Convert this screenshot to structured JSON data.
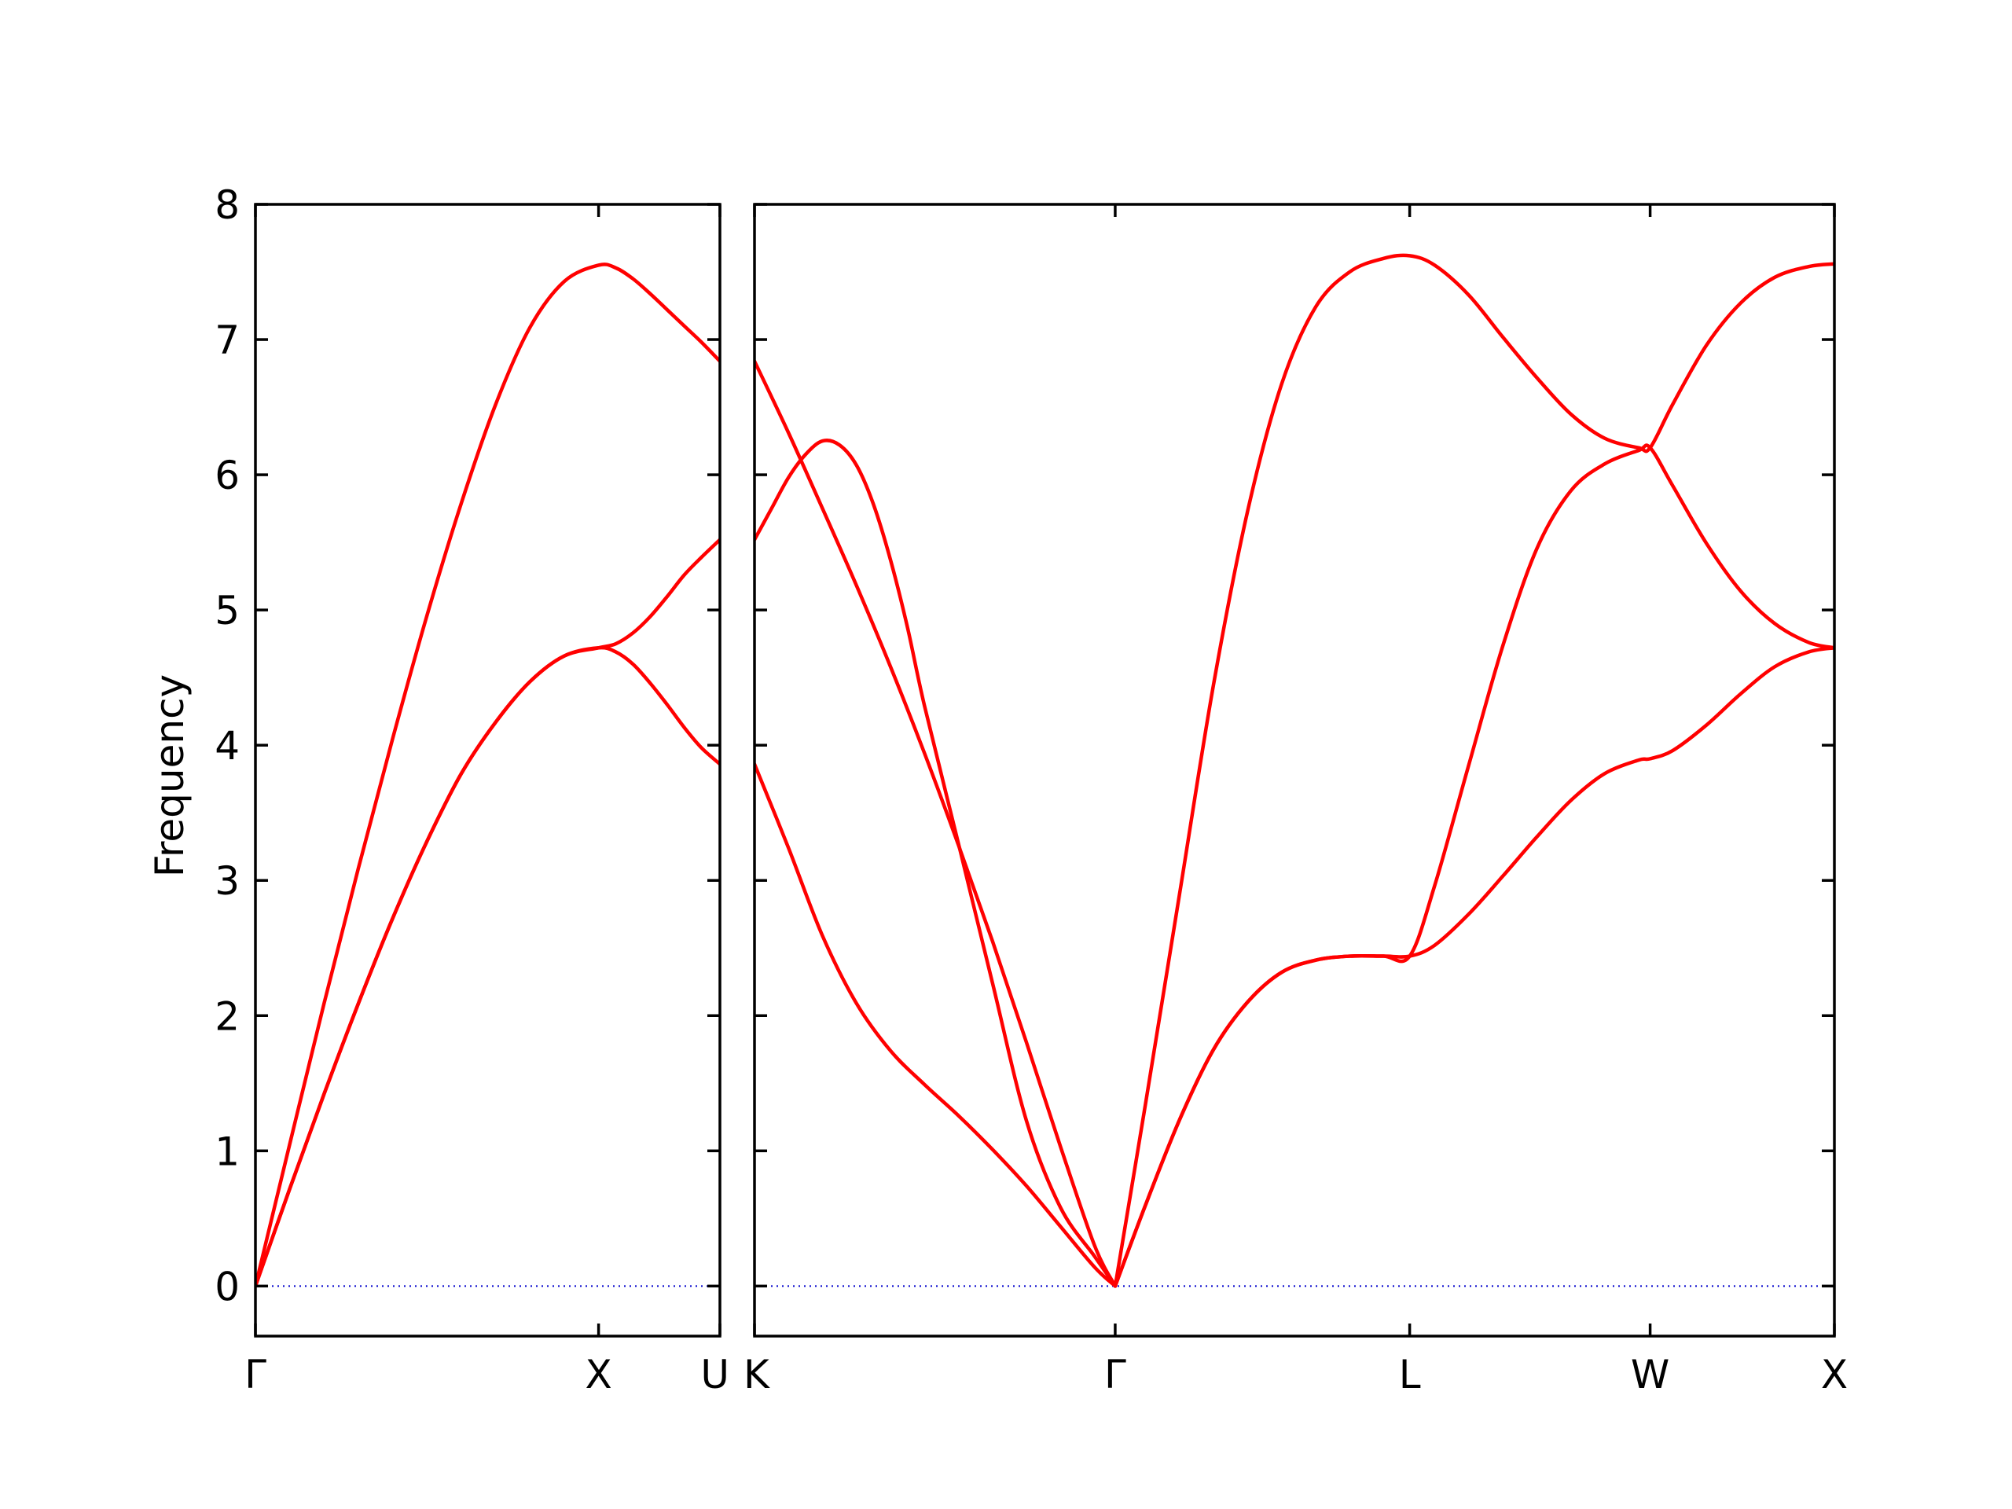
{
  "chart_data": {
    "type": "line",
    "ylabel": "Frequency",
    "ylim": [
      -0.37,
      8.0
    ],
    "yticks": [
      "0",
      "1",
      "2",
      "3",
      "4",
      "5",
      "6",
      "7",
      "8"
    ],
    "grid": false,
    "colors": {
      "band": "#ff0000",
      "zero": "#0000cc",
      "frame": "#000000"
    },
    "panels": [
      {
        "name": "panel-gamma-x-u",
        "xlim": [
          0,
          1.3536
        ],
        "ticks": [
          {
            "label": "Γ",
            "x": 0
          },
          {
            "label": "X",
            "x": 1.0
          },
          {
            "label": "U",
            "x": 1.3536
          }
        ],
        "series": [
          {
            "name": "",
            "x": [
              0,
              0.1,
              0.2,
              0.3,
              0.4,
              0.5,
              0.6,
              0.7,
              0.8,
              0.9,
              1.0,
              1.05,
              1.1,
              1.15,
              1.2,
              1.25,
              1.3,
              1.3536
            ],
            "y": [
              0,
              1.05,
              2.09,
              3.09,
              4.05,
              4.96,
              5.79,
              6.52,
              7.09,
              7.43,
              7.55,
              7.53,
              7.45,
              7.34,
              7.22,
              7.1,
              6.98,
              6.84
            ]
          },
          {
            "name": "",
            "x": [
              0,
              0.1,
              0.2,
              0.3,
              0.4,
              0.5,
              0.6,
              0.7,
              0.8,
              0.9,
              1.0,
              1.05,
              1.1,
              1.15,
              1.2,
              1.25,
              1.3,
              1.3536
            ],
            "y": [
              0,
              0.72,
              1.42,
              2.09,
              2.72,
              3.29,
              3.79,
              4.17,
              4.47,
              4.66,
              4.72,
              4.75,
              4.83,
              4.95,
              5.1,
              5.26,
              5.39,
              5.52
            ]
          },
          {
            "name": "",
            "x": [
              0,
              0.1,
              0.2,
              0.3,
              0.4,
              0.5,
              0.6,
              0.7,
              0.8,
              0.9,
              1.0,
              1.05,
              1.1,
              1.15,
              1.2,
              1.25,
              1.3,
              1.3536
            ],
            "y": [
              0,
              0.72,
              1.42,
              2.09,
              2.72,
              3.29,
              3.79,
              4.17,
              4.47,
              4.66,
              4.72,
              4.69,
              4.6,
              4.46,
              4.3,
              4.13,
              3.98,
              3.86
            ]
          }
        ]
      },
      {
        "name": "panel-k-gamma-l-w-x",
        "xlim": [
          0,
          3.1756
        ],
        "ticks": [
          {
            "label": "K",
            "x": 0
          },
          {
            "label": "Γ",
            "x": 1.0607
          },
          {
            "label": "L",
            "x": 1.9267
          },
          {
            "label": "W",
            "x": 2.6338
          },
          {
            "label": "X",
            "x": 3.1756
          }
        ],
        "series": [
          {
            "name": "",
            "x": [
              0,
              0.1,
              0.2,
              0.3,
              0.4,
              0.5,
              0.6,
              0.7,
              0.8,
              0.9,
              1.0,
              1.0607
            ],
            "y": [
              6.84,
              6.31,
              5.75,
              5.18,
              4.58,
              3.94,
              3.26,
              2.55,
              1.8,
              1.03,
              0.3,
              0
            ]
          },
          {
            "name": "",
            "x": [
              0,
              0.05,
              0.1,
              0.15,
              0.2,
              0.25,
              0.3,
              0.35,
              0.4,
              0.45,
              0.5,
              0.6,
              0.7,
              0.8,
              0.9,
              1.0,
              1.0607
            ],
            "y": [
              5.52,
              5.75,
              5.98,
              6.15,
              6.25,
              6.22,
              6.07,
              5.78,
              5.37,
              4.87,
              4.29,
              3.27,
              2.24,
              1.22,
              0.58,
              0.22,
              0
            ]
          },
          {
            "name": "",
            "x": [
              0,
              0.1,
              0.2,
              0.3,
              0.4,
              0.5,
              0.6,
              0.7,
              0.8,
              0.9,
              1.0,
              1.0607
            ],
            "y": [
              3.86,
              3.24,
              2.59,
              2.09,
              1.74,
              1.49,
              1.26,
              1.01,
              0.74,
              0.44,
              0.14,
              0
            ]
          },
          {
            "name": "",
            "x": [
              1.0607,
              1.15,
              1.25,
              1.35,
              1.45,
              1.55,
              1.65,
              1.75,
              1.85,
              1.9267,
              2.0,
              2.1,
              2.2,
              2.3,
              2.4,
              2.5,
              2.6,
              2.6338,
              2.7,
              2.8,
              2.9,
              3.0,
              3.1,
              3.1756
            ],
            "y": [
              0,
              1.35,
              2.9,
              4.45,
              5.73,
              6.67,
              7.24,
              7.5,
              7.6,
              7.62,
              7.55,
              7.33,
              7.02,
              6.72,
              6.45,
              6.27,
              6.2,
              6.2,
              6.52,
              6.96,
              7.27,
              7.46,
              7.54,
              7.56
            ]
          },
          {
            "name": "",
            "x": [
              1.0607,
              1.15,
              1.25,
              1.35,
              1.45,
              1.55,
              1.65,
              1.75,
              1.85,
              1.9267,
              2.0,
              2.1,
              2.2,
              2.3,
              2.4,
              2.5,
              2.6,
              2.6338,
              2.7,
              2.8,
              2.9,
              3.0,
              3.1,
              3.1756
            ],
            "y": [
              0,
              0.6,
              1.23,
              1.75,
              2.1,
              2.32,
              2.41,
              2.44,
              2.44,
              2.44,
              2.96,
              3.85,
              4.73,
              5.45,
              5.88,
              6.08,
              6.18,
              6.2,
              5.92,
              5.49,
              5.14,
              4.9,
              4.76,
              4.72
            ]
          },
          {
            "name": "",
            "x": [
              1.0607,
              1.15,
              1.25,
              1.35,
              1.45,
              1.55,
              1.65,
              1.75,
              1.85,
              1.9267,
              2.0,
              2.1,
              2.2,
              2.3,
              2.4,
              2.5,
              2.6,
              2.6338,
              2.7,
              2.8,
              2.9,
              3.0,
              3.1,
              3.1756
            ],
            "y": [
              0,
              0.6,
              1.23,
              1.75,
              2.1,
              2.32,
              2.41,
              2.44,
              2.44,
              2.44,
              2.52,
              2.75,
              3.03,
              3.32,
              3.59,
              3.79,
              3.89,
              3.9,
              3.96,
              4.15,
              4.38,
              4.58,
              4.69,
              4.72
            ]
          }
        ]
      }
    ]
  }
}
